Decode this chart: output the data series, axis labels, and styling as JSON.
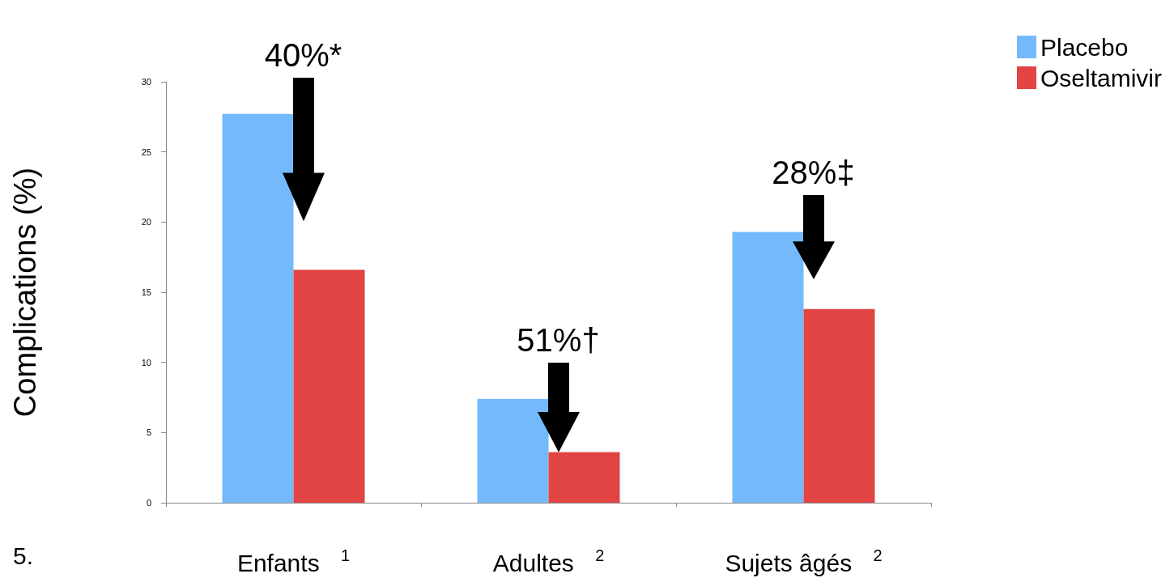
{
  "chart_data": {
    "type": "bar",
    "ylabel": "Complications (%)",
    "categories": [
      "Enfants $^{1}$",
      "Adultes $^{2}$",
      "Sujets âgés $^{2}$"
    ],
    "series": [
      {
        "name": "Placebo",
        "color": "#75b9fd",
        "values": [
          27.7,
          7.4,
          19.3
        ]
      },
      {
        "name": "Oseltamivir",
        "color": "#e24444",
        "values": [
          16.6,
          3.6,
          13.8
        ]
      }
    ],
    "ylim": [
      0,
      30
    ],
    "yticks": [
      0,
      5,
      10,
      15,
      20,
      25,
      30
    ],
    "grid": false,
    "legend": "top right",
    "annotations": [
      "40%*",
      {
        "text": "51%†",
        "x": "Adultes $^{2}$",
        "y": 3.6
      },
      {
        "text": "28%‡",
        "x": "Sujets âgés $^{2}$",
        "y": 15.9
      },
      "5."
    ]
  }
}
